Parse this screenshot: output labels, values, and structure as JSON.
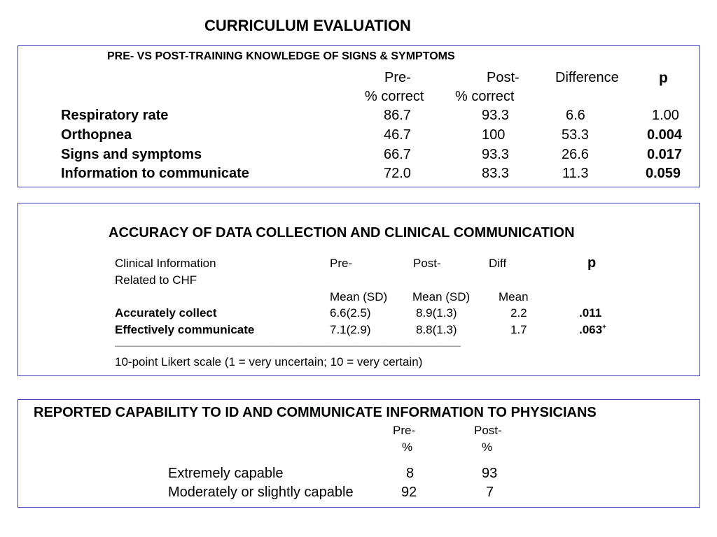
{
  "title": "CURRICULUM EVALUATION",
  "box1": {
    "title": "PRE- VS POST-TRAINING KNOWLEDGE OF SIGNS & SYMPTOMS",
    "headers": {
      "pre_line1": "Pre-",
      "pre_line2": "% correct",
      "post_line1": "Post-",
      "post_line2": "% correct",
      "diff": "Difference",
      "p": "p"
    },
    "rows": [
      {
        "label": "Respiratory rate",
        "pre": "86.7",
        "post": "93.3",
        "diff": "6.6",
        "p": "1.00"
      },
      {
        "label": "Orthopnea",
        "pre": "46.7",
        "post": "100",
        "diff": "53.3",
        "p": "0.004"
      },
      {
        "label": "Signs and symptoms",
        "pre": "66.7",
        "post": "93.3",
        "diff": "26.6",
        "p": "0.017"
      },
      {
        "label": "Information to communicate",
        "pre": "72.0",
        "post": "83.3",
        "diff": "11.3",
        "p": "0.059"
      }
    ]
  },
  "box2": {
    "title": "ACCURACY OF DATA COLLECTION AND CLINICAL COMMUNICATION",
    "headers": {
      "col1_line1": "Clinical Information",
      "col1_line2": "Related to CHF",
      "pre_line1": "Pre-",
      "post_line1": "Post-",
      "diff_line1": "Diff",
      "p": "p",
      "pre_line2": "Mean (SD)",
      "post_line2": "Mean (SD)",
      "diff_line2": "Mean"
    },
    "rows": [
      {
        "label": "Accurately collect",
        "pre": "6.6(2.5)",
        "post": "8.9(1.3)",
        "diff": "2.2",
        "p": ".011",
        "sup": ""
      },
      {
        "label": "Effectively communicate",
        "pre": "7.1(2.9)",
        "post": "8.8(1.3)",
        "diff": "1.7",
        "p": ".063",
        "sup": "+"
      }
    ],
    "rule": "__________________________________________________________________________",
    "footnote": "10-point Likert scale (1 = very uncertain; 10 = very certain)"
  },
  "box3": {
    "title": "REPORTED CAPABILITY TO ID AND COMMUNICATE INFORMATION TO PHYSICIANS",
    "headers": {
      "pre_line1": "Pre-",
      "pre_line2": "%",
      "post_line1": "Post-",
      "post_line2": "%"
    },
    "rows": [
      {
        "label": "Extremely capable",
        "pre": "8",
        "post": "93"
      },
      {
        "label": "Moderately or slightly capable",
        "pre": "92",
        "post": "7"
      }
    ]
  }
}
